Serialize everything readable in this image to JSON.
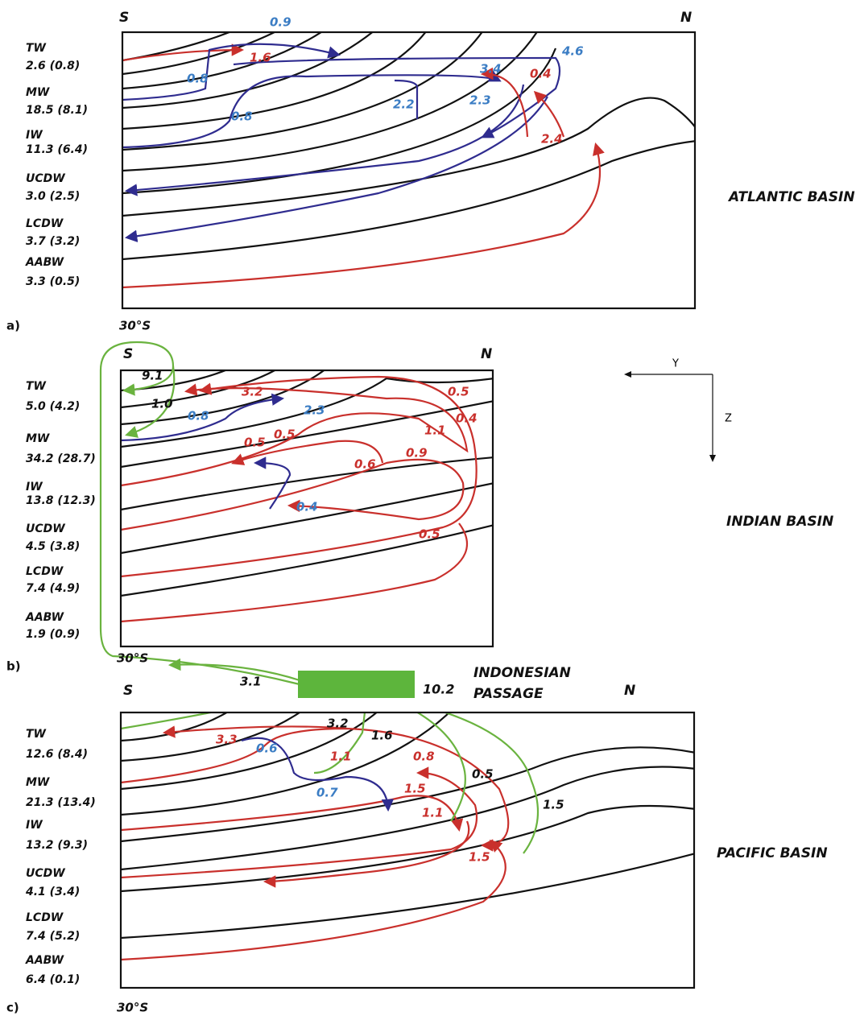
{
  "panels": [
    {
      "label": "a)",
      "south": "S",
      "north": "N",
      "latitude": "30°S",
      "basin": "ATLANTIC BASIN",
      "layers": [
        {
          "name": "TW",
          "transport": "2.6 (0.8)"
        },
        {
          "name": "MW",
          "transport": "18.5 (8.1)"
        },
        {
          "name": "IW",
          "transport": "11.3 (6.4)"
        },
        {
          "name": "UCDW",
          "transport": "3.0 (2.5)"
        },
        {
          "name": "LCDW",
          "transport": "3.7 (3.2)"
        },
        {
          "name": "AABW",
          "transport": "3.3 (0.5)"
        }
      ],
      "flows": [
        "0.9",
        "1.6",
        "4.6",
        "3.4",
        "0.4",
        "0.8",
        "2.2",
        "2.3",
        "0.8",
        "2.4"
      ]
    },
    {
      "label": "b)",
      "south": "S",
      "north": "N",
      "latitude": "30°S",
      "basin": "INDIAN BASIN",
      "layers": [
        {
          "name": "TW",
          "transport": "5.0 (4.2)"
        },
        {
          "name": "MW",
          "transport": "34.2 (28.7)"
        },
        {
          "name": "IW",
          "transport": "13.8 (12.3)"
        },
        {
          "name": "UCDW",
          "transport": "4.5 (3.8)"
        },
        {
          "name": "LCDW",
          "transport": "7.4 (4.9)"
        },
        {
          "name": "AABW",
          "transport": "1.9 (0.9)"
        }
      ],
      "flows": [
        "9.1",
        "1.0",
        "3.2",
        "2.3",
        "0.5",
        "0.4",
        "0.8",
        "0.5",
        "0.5",
        "1.1",
        "0.6",
        "0.9",
        "0.4",
        "0.5"
      ]
    },
    {
      "label": "c)",
      "south": "S",
      "north": "N",
      "latitude": "30°S",
      "basin": "PACIFIC BASIN",
      "layers": [
        {
          "name": "TW",
          "transport": "12.6 (8.4)"
        },
        {
          "name": "MW",
          "transport": "21.3 (13.4)"
        },
        {
          "name": "IW",
          "transport": "13.2 (9.3)"
        },
        {
          "name": "UCDW",
          "transport": "4.1 (3.4)"
        },
        {
          "name": "LCDW",
          "transport": "7.4 (5.2)"
        },
        {
          "name": "AABW",
          "transport": "6.4 (0.1)"
        }
      ],
      "flows": [
        "3.3",
        "3.2",
        "0.6",
        "1.6",
        "1.1",
        "0.8",
        "0.5",
        "0.7",
        "1.5",
        "1.1",
        "1.5",
        "1.5"
      ]
    }
  ],
  "axes": {
    "y": "Y",
    "z": "Z"
  },
  "passage": {
    "name_line1": "INDONESIAN",
    "name_line2": "PASSAGE",
    "transport": "10.2",
    "leak": "3.1"
  }
}
